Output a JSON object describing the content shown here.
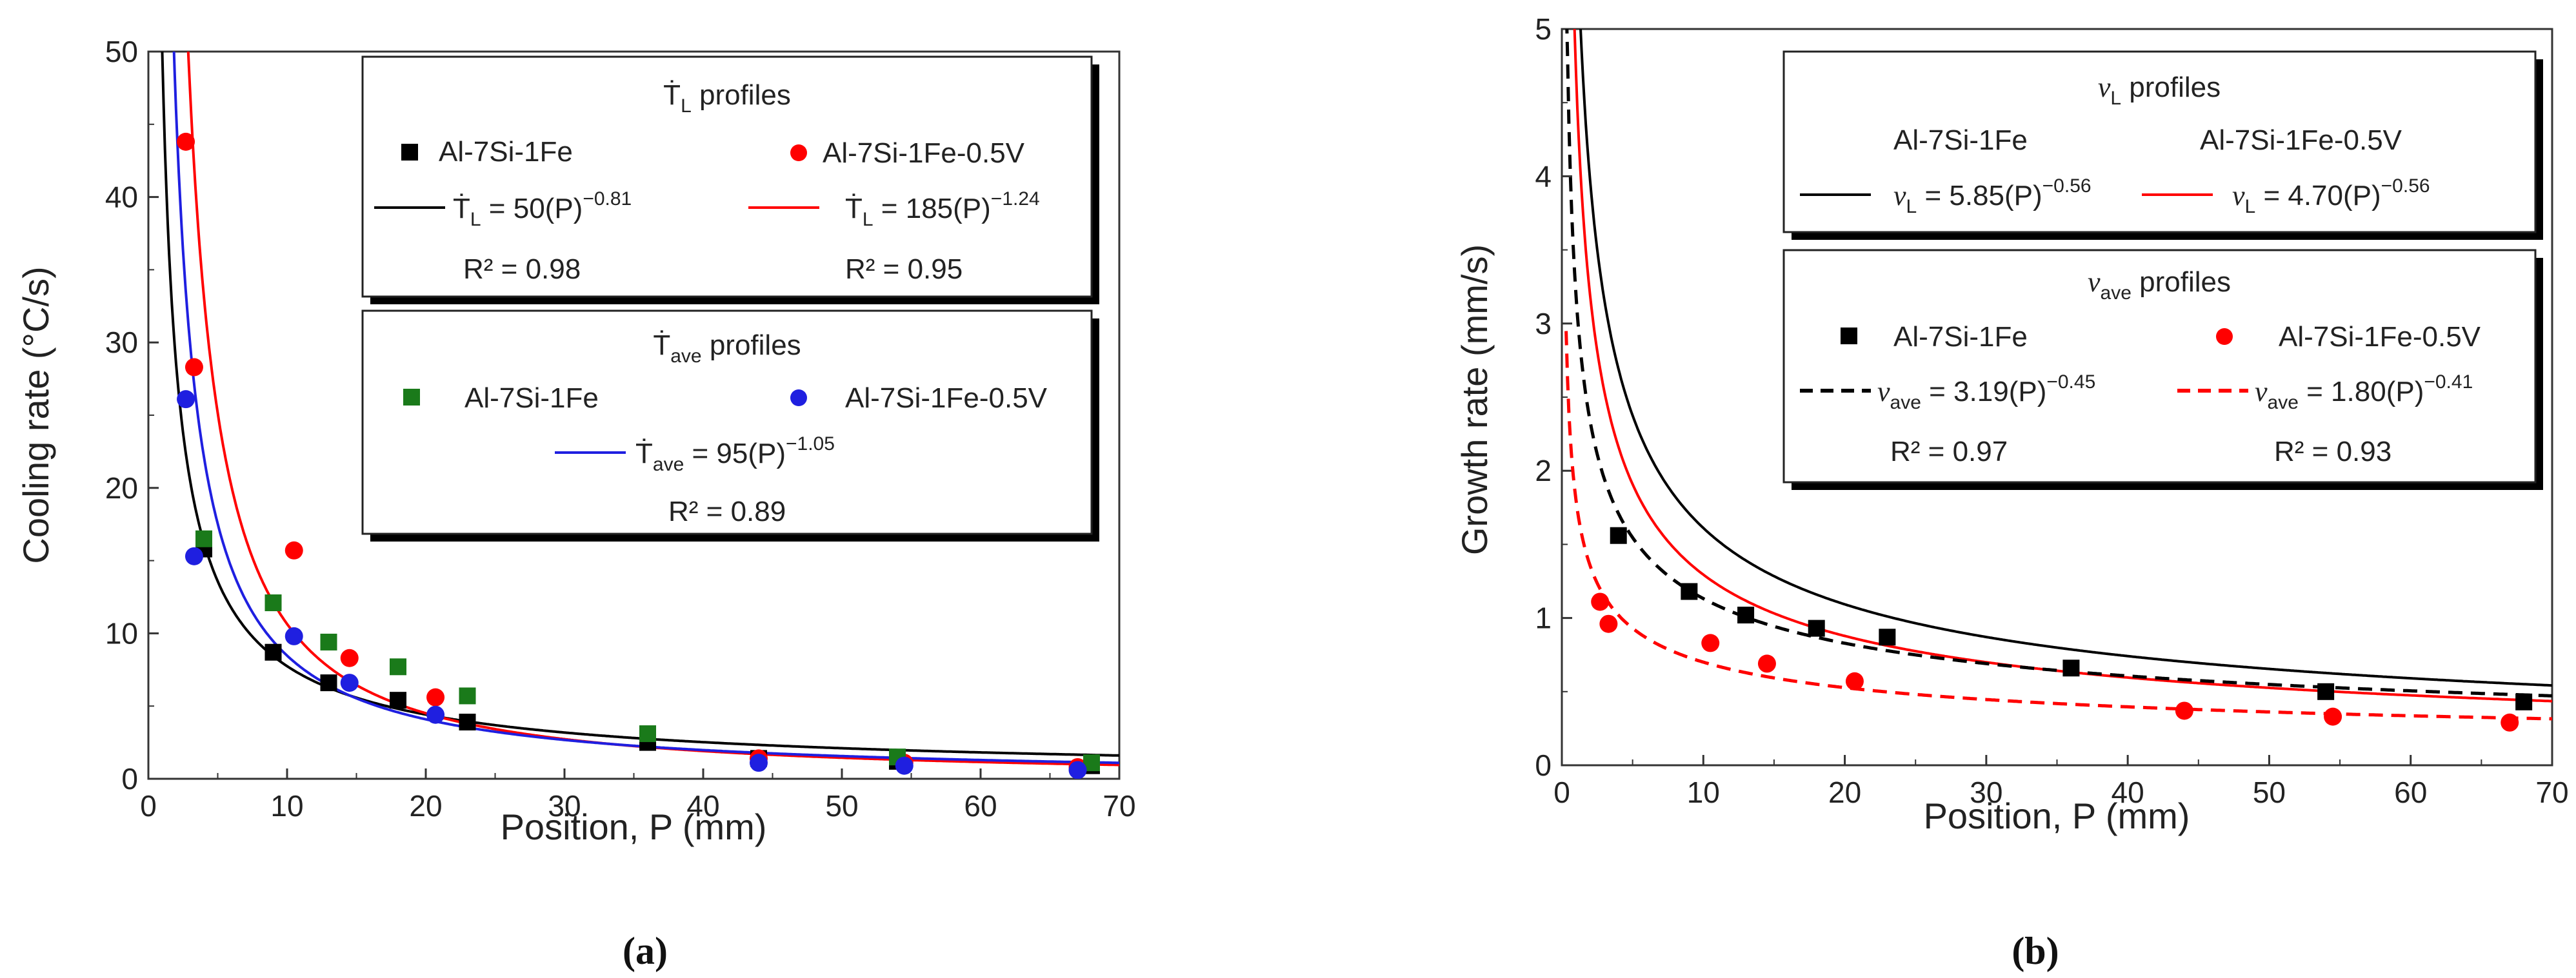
{
  "chart_data": [
    {
      "type": "scatter",
      "panel_label": "(a)",
      "xlabel": "Position, P (mm)",
      "ylabel": "Cooling rate (°C/s)",
      "xlim": [
        0,
        70
      ],
      "ylim": [
        0,
        50
      ],
      "xticks": [
        "0",
        "10",
        "20",
        "30",
        "40",
        "50",
        "60",
        "70"
      ],
      "yticks": [
        "0",
        "10",
        "20",
        "30",
        "40",
        "50"
      ],
      "x_tick_values": [
        0,
        10,
        20,
        30,
        40,
        50,
        60,
        70
      ],
      "y_tick_values": [
        0,
        10,
        20,
        30,
        40,
        50
      ],
      "series": [
        {
          "name": "Al-7Si-1Fe (Ṫ_L)",
          "marker": "square",
          "color": "#000000",
          "x": [
            4,
            9,
            13,
            18,
            23,
            36,
            44,
            54,
            68
          ],
          "y": [
            15.8,
            8.7,
            6.6,
            5.4,
            3.9,
            2.5,
            1.4,
            1.2,
            0.9
          ]
        },
        {
          "name": "Al-7Si-1Fe-0.5V (Ṫ_L)",
          "marker": "circle",
          "color": "#ff0000",
          "x": [
            2.7,
            3.3,
            10.5,
            14.5,
            20.7,
            44,
            54.5,
            67
          ],
          "y": [
            43.8,
            28.3,
            15.7,
            8.3,
            5.6,
            1.4,
            1.1,
            0.8
          ]
        },
        {
          "name": "Al-7Si-1Fe (Ṫ_ave)",
          "marker": "square",
          "color": "#1a7a1a",
          "x": [
            4,
            9,
            13,
            18,
            23,
            36,
            54,
            68
          ],
          "y": [
            16.5,
            12.1,
            9.4,
            7.7,
            5.7,
            3.1,
            1.5,
            1.1
          ]
        },
        {
          "name": "Al-7Si-1Fe-0.5V (Ṫ_ave)",
          "marker": "circle",
          "color": "#1f1fe0",
          "x": [
            2.7,
            3.3,
            10.5,
            14.5,
            20.7,
            44,
            54.5,
            67
          ],
          "y": [
            26.1,
            15.3,
            9.8,
            6.6,
            4.4,
            1.1,
            0.9,
            0.6
          ]
        }
      ],
      "fits": [
        {
          "name": "Ṫ_L Al-7Si-1Fe",
          "a": 50,
          "b": -0.81,
          "color": "#000000",
          "dash": "solid"
        },
        {
          "name": "Ṫ_L Al-7Si-1Fe-0.5V",
          "a": 185,
          "b": -1.24,
          "color": "#ff0000",
          "dash": "solid"
        },
        {
          "name": "Ṫ_ave",
          "a": 95,
          "b": -1.05,
          "color": "#1f1fe0",
          "dash": "solid"
        }
      ],
      "legend": {
        "box1_title_main": "Ṫ",
        "box1_title_sub": "L",
        "box1_title_rest": " profiles",
        "box1_s1": "Al-7Si-1Fe",
        "box1_s2": "Al-7Si-1Fe-0.5V",
        "box1_f1_main": "Ṫ",
        "box1_f1_sub": "L",
        "box1_f1_eq": " = 50(P)",
        "box1_f1_exp": "−0.81",
        "box1_f2_main": "Ṫ",
        "box1_f2_sub": "L",
        "box1_f2_eq": " = 185(P)",
        "box1_f2_exp": "−1.24",
        "box1_r1": "R² = 0.98",
        "box1_r2": "R² = 0.95",
        "box2_title_main": "Ṫ",
        "box2_title_sub": "ave",
        "box2_title_rest": " profiles",
        "box2_s1": "Al-7Si-1Fe",
        "box2_s2": "Al-7Si-1Fe-0.5V",
        "box2_f_main": "Ṫ",
        "box2_f_sub": "ave",
        "box2_f_eq": " = 95(P)",
        "box2_f_exp": "−1.05",
        "box2_r": "R² = 0.89"
      }
    },
    {
      "type": "scatter",
      "panel_label": "(b)",
      "xlabel": "Position, P (mm)",
      "ylabel": "Growth rate (mm/s)",
      "xlim": [
        0,
        70
      ],
      "ylim": [
        0,
        5
      ],
      "xticks": [
        "0",
        "10",
        "20",
        "30",
        "40",
        "50",
        "60",
        "70"
      ],
      "yticks": [
        "0",
        "1",
        "2",
        "3",
        "4",
        "5"
      ],
      "x_tick_values": [
        0,
        10,
        20,
        30,
        40,
        50,
        60,
        70
      ],
      "y_tick_values": [
        0,
        1,
        2,
        3,
        4,
        5
      ],
      "series": [
        {
          "name": "Al-7Si-1Fe (v_ave)",
          "marker": "square",
          "color": "#000000",
          "x": [
            4,
            9,
            13,
            18,
            23,
            36,
            54,
            68
          ],
          "y": [
            1.56,
            1.18,
            1.02,
            0.93,
            0.87,
            0.66,
            0.5,
            0.43
          ]
        },
        {
          "name": "Al-7Si-1Fe-0.5V (v_ave)",
          "marker": "circle",
          "color": "#ff0000",
          "x": [
            2.7,
            3.3,
            10.5,
            14.5,
            20.7,
            44,
            54.5,
            67
          ],
          "y": [
            1.11,
            0.96,
            0.83,
            0.69,
            0.57,
            0.37,
            0.33,
            0.29
          ]
        }
      ],
      "fits": [
        {
          "name": "v_L Al-7Si-1Fe",
          "a": 5.85,
          "b": -0.56,
          "color": "#000000",
          "dash": "solid"
        },
        {
          "name": "v_L Al-7Si-1Fe-0.5V",
          "a": 4.7,
          "b": -0.56,
          "color": "#ff0000",
          "dash": "solid"
        },
        {
          "name": "v_ave Al-7Si-1Fe",
          "a": 3.19,
          "b": -0.45,
          "color": "#000000",
          "dash": "dashed"
        },
        {
          "name": "v_ave Al-7Si-1Fe-0.5V",
          "a": 1.8,
          "b": -0.41,
          "color": "#ff0000",
          "dash": "dashed"
        }
      ],
      "legend": {
        "box1_title_main": "v",
        "box1_title_sub": "L",
        "box1_title_rest": " profiles",
        "box1_s1": "Al-7Si-1Fe",
        "box1_s2": "Al-7Si-1Fe-0.5V",
        "box1_f1_main": "v",
        "box1_f1_sub": "L",
        "box1_f1_eq": " = 5.85(P)",
        "box1_f1_exp": "−0.56",
        "box1_f2_main": "v",
        "box1_f2_sub": "L",
        "box1_f2_eq": " = 4.70(P)",
        "box1_f2_exp": "−0.56",
        "box2_title_main": "v",
        "box2_title_sub": "ave",
        "box2_title_rest": " profiles",
        "box2_s1": "Al-7Si-1Fe",
        "box2_s2": "Al-7Si-1Fe-0.5V",
        "box2_f1_main": "v",
        "box2_f1_sub": "ave",
        "box2_f1_eq": " = 3.19(P)",
        "box2_f1_exp": "−0.45",
        "box2_f2_main": "v",
        "box2_f2_sub": "ave",
        "box2_f2_eq": " = 1.80(P)",
        "box2_f2_exp": "−0.41",
        "box2_r1": "R² = 0.97",
        "box2_r2": "R² = 0.93"
      }
    }
  ]
}
